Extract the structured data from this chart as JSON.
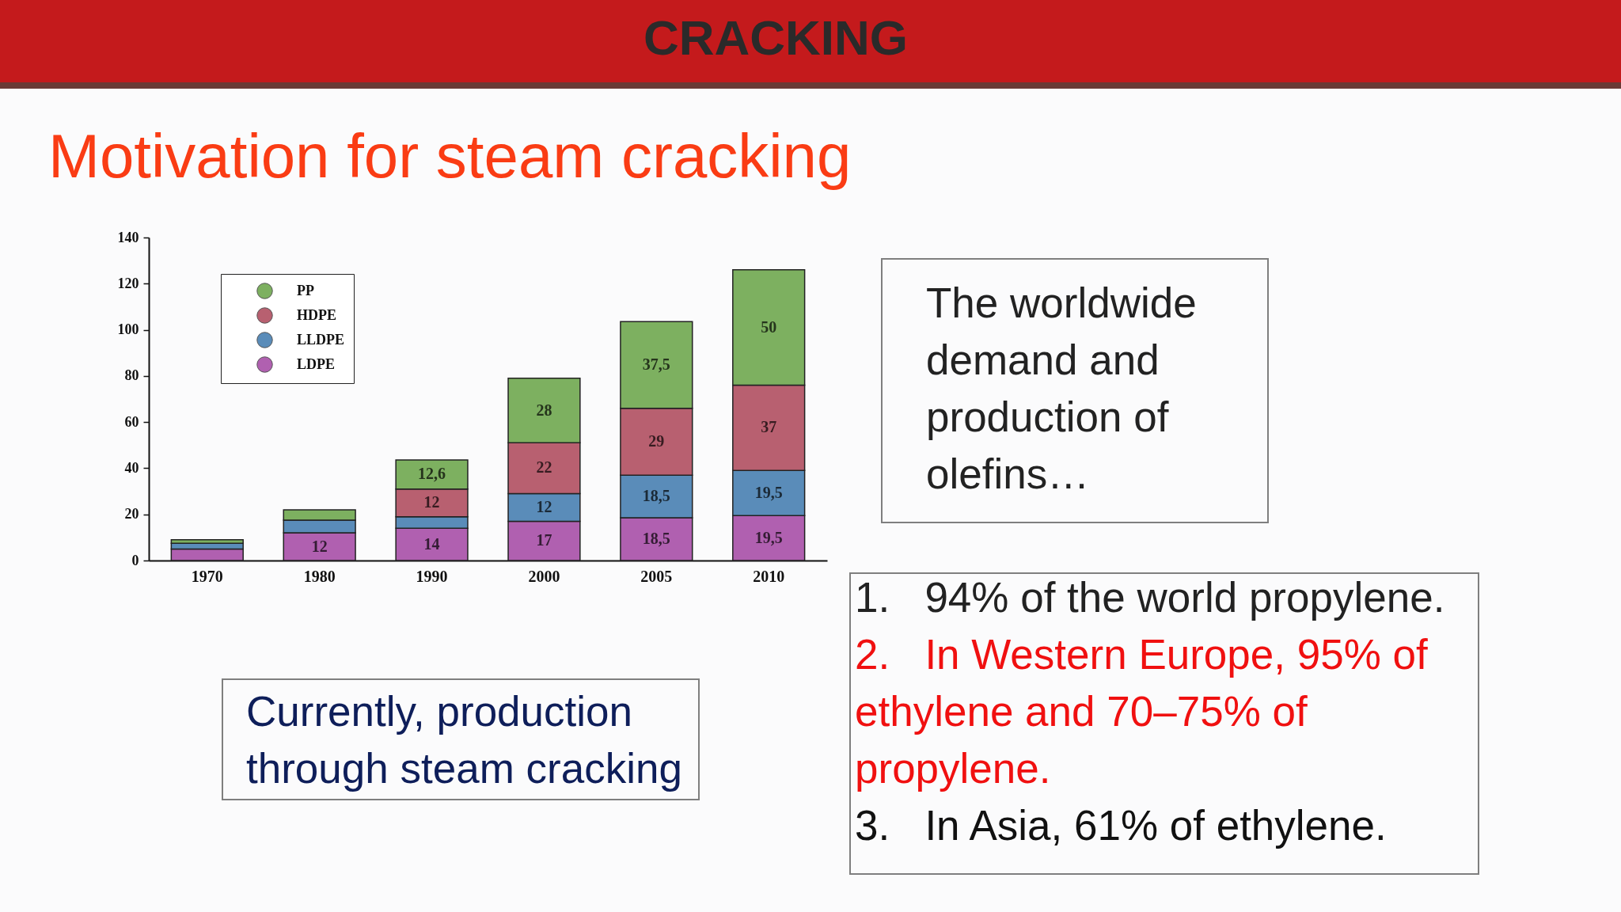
{
  "chart_data": {
    "type": "bar",
    "title": "CRACKING",
    "subtitle": "Motivation for  steam cracking",
    "categories": [
      "1970",
      "1980",
      "1990",
      "2000",
      "2005",
      "2010"
    ],
    "stacked": true,
    "legend": "top left",
    "ylim": [
      0,
      140
    ],
    "yticks": [
      0,
      20,
      40,
      60,
      80,
      100,
      120,
      140
    ],
    "series": [
      {
        "name": "LDPE",
        "color": "#b060b0",
        "values": [
          5,
          12,
          14,
          17,
          18.5,
          19.5
        ],
        "value_labels": [
          null,
          "12",
          "14",
          "17",
          "18,5",
          "19,5"
        ]
      },
      {
        "name": "LLDPE",
        "color": "#5a8cb9",
        "values": [
          2.5,
          5.5,
          5,
          12,
          18.5,
          19.5
        ],
        "value_labels": [
          null,
          null,
          null,
          "12",
          "18,5",
          "19,5"
        ]
      },
      {
        "name": "HDPE",
        "color": "#b86070",
        "values": [
          null,
          null,
          12,
          22,
          29,
          37
        ],
        "value_labels": [
          null,
          null,
          "12",
          "22",
          "29",
          "37"
        ]
      },
      {
        "name": "PP",
        "color": "#7db060",
        "values": [
          1.5,
          4.5,
          12.6,
          28,
          37.5,
          50
        ],
        "value_labels": [
          null,
          null,
          "12,6",
          "28",
          "37,5",
          "50"
        ]
      }
    ],
    "annotations": [
      "The worldwide demand and production of olefins…",
      "Currently, production through steam cracking",
      "1. 94% of the world propylene.",
      "2. In Western Europe, 95% of ethylene and 70–75% of propylene.",
      "3. In Asia, 61% of ethylene."
    ]
  }
}
